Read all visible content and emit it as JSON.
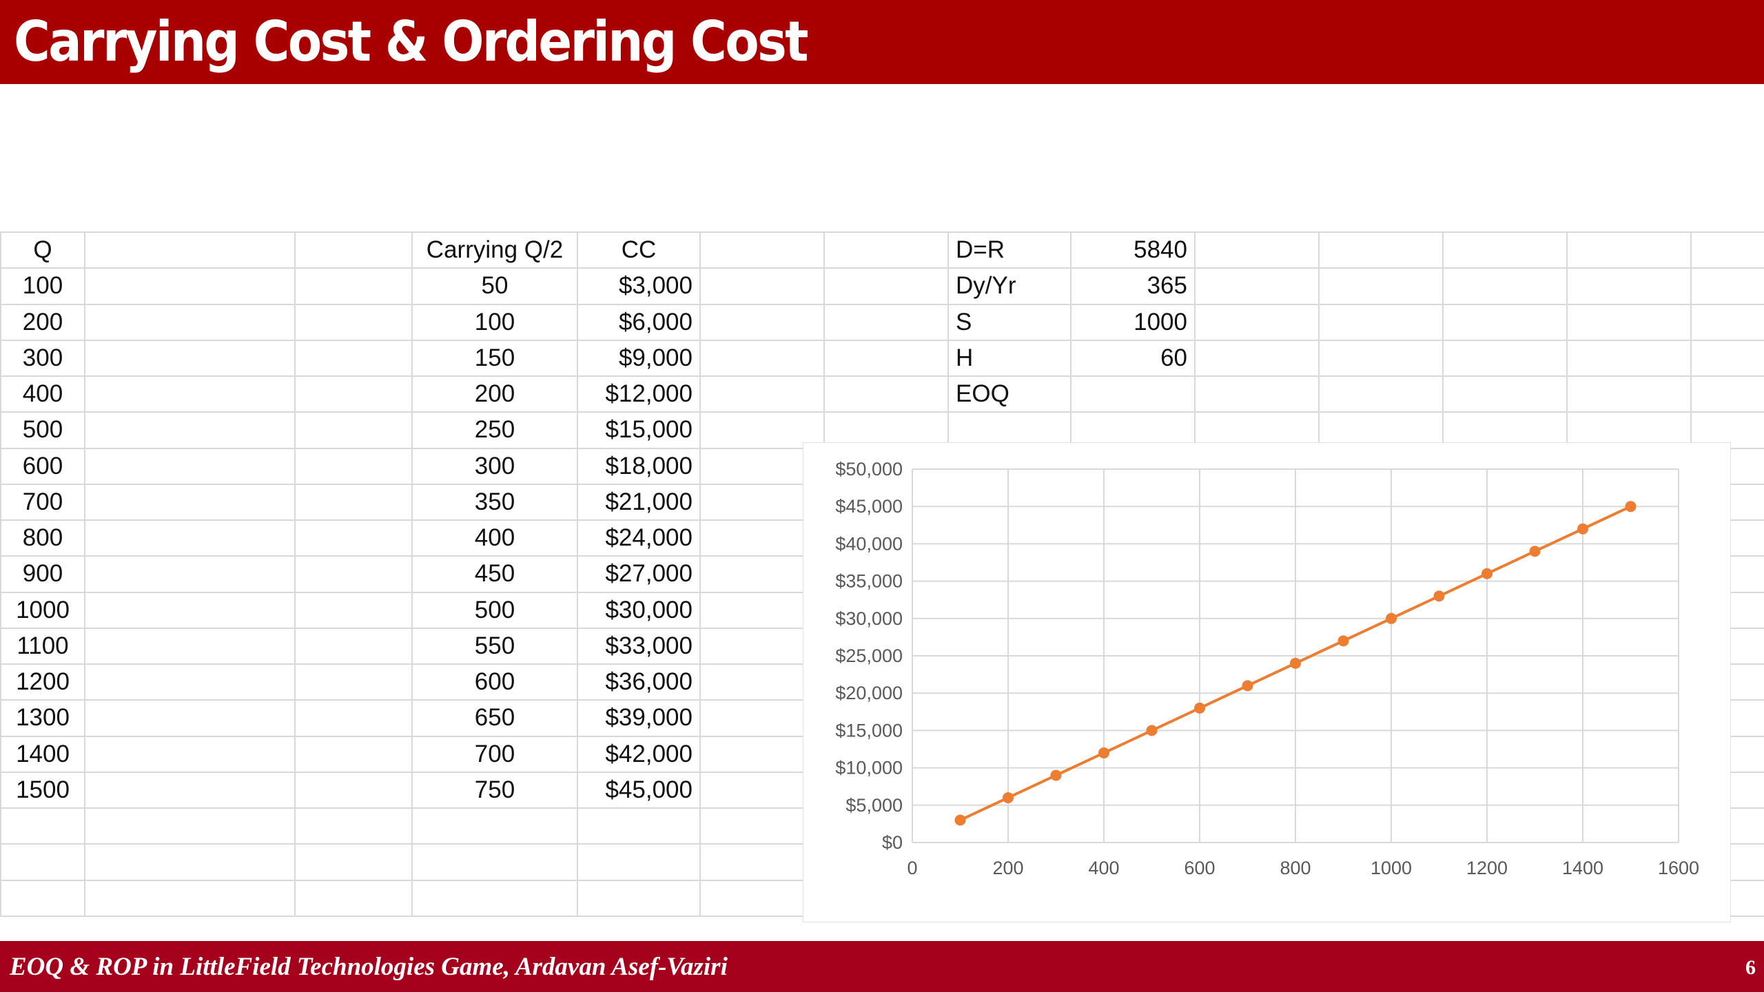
{
  "slide": {
    "title": "Carrying Cost & Ordering Cost",
    "footer": "EOQ & ROP in LittleField Technologies Game, Ardavan Asef-Vaziri",
    "page_number": "6"
  },
  "table": {
    "headers": {
      "q": "Q",
      "carrying": "Carrying Q/2",
      "cc": "CC"
    },
    "rows": [
      {
        "q": "100",
        "carrying": "50",
        "cc": "$3,000"
      },
      {
        "q": "200",
        "carrying": "100",
        "cc": "$6,000"
      },
      {
        "q": "300",
        "carrying": "150",
        "cc": "$9,000"
      },
      {
        "q": "400",
        "carrying": "200",
        "cc": "$12,000"
      },
      {
        "q": "500",
        "carrying": "250",
        "cc": "$15,000"
      },
      {
        "q": "600",
        "carrying": "300",
        "cc": "$18,000"
      },
      {
        "q": "700",
        "carrying": "350",
        "cc": "$21,000"
      },
      {
        "q": "800",
        "carrying": "400",
        "cc": "$24,000"
      },
      {
        "q": "900",
        "carrying": "450",
        "cc": "$27,000"
      },
      {
        "q": "1000",
        "carrying": "500",
        "cc": "$30,000"
      },
      {
        "q": "1100",
        "carrying": "550",
        "cc": "$33,000"
      },
      {
        "q": "1200",
        "carrying": "600",
        "cc": "$36,000"
      },
      {
        "q": "1300",
        "carrying": "650",
        "cc": "$39,000"
      },
      {
        "q": "1400",
        "carrying": "700",
        "cc": "$42,000"
      },
      {
        "q": "1500",
        "carrying": "750",
        "cc": "$45,000"
      }
    ]
  },
  "params": [
    {
      "label": "D=R",
      "value": "5840"
    },
    {
      "label": "Dy/Yr",
      "value": "365"
    },
    {
      "label": "S",
      "value": "1000"
    },
    {
      "label": "H",
      "value": "60"
    },
    {
      "label": "EOQ",
      "value": ""
    }
  ],
  "chart_data": {
    "type": "line",
    "x": [
      100,
      200,
      300,
      400,
      500,
      600,
      700,
      800,
      900,
      1000,
      1100,
      1200,
      1300,
      1400,
      1500
    ],
    "series": [
      {
        "values": [
          3000,
          6000,
          9000,
          12000,
          15000,
          18000,
          21000,
          24000,
          27000,
          30000,
          33000,
          36000,
          39000,
          42000,
          45000
        ],
        "color": "#ed7d31"
      }
    ],
    "xlim": [
      0,
      1600
    ],
    "ylim": [
      0,
      50000
    ],
    "x_ticks": [
      "0",
      "200",
      "400",
      "600",
      "800",
      "1000",
      "1200",
      "1400",
      "1600"
    ],
    "y_ticks": [
      "$0",
      "$5,000",
      "$10,000",
      "$15,000",
      "$20,000",
      "$25,000",
      "$30,000",
      "$35,000",
      "$40,000",
      "$45,000",
      "$50,000"
    ],
    "grid": true,
    "gridline_color": "#d9d9d9",
    "title": "",
    "xlabel": "",
    "ylabel": ""
  }
}
